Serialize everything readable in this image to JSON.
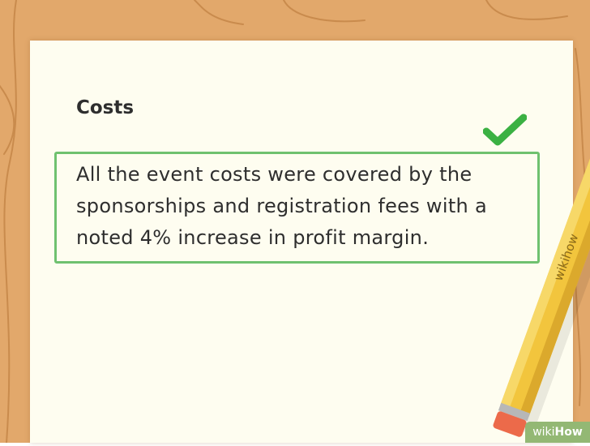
{
  "card": {
    "heading": "Costs",
    "body": "All the event costs were covered by the sponsorships and registration fees with a noted 4% increase in profit margin."
  },
  "pencil_brand": "wikihow",
  "badge": {
    "wiki": "wiki",
    "how": "How"
  },
  "colors": {
    "wood": "#e2a86b",
    "paper": "#fefdf0",
    "accent_green": "#6fc16f",
    "check_green": "#3bb143",
    "pencil_yellow": "#f2c53d"
  },
  "icons": {
    "check": "check-icon",
    "pencil": "pencil-icon"
  }
}
